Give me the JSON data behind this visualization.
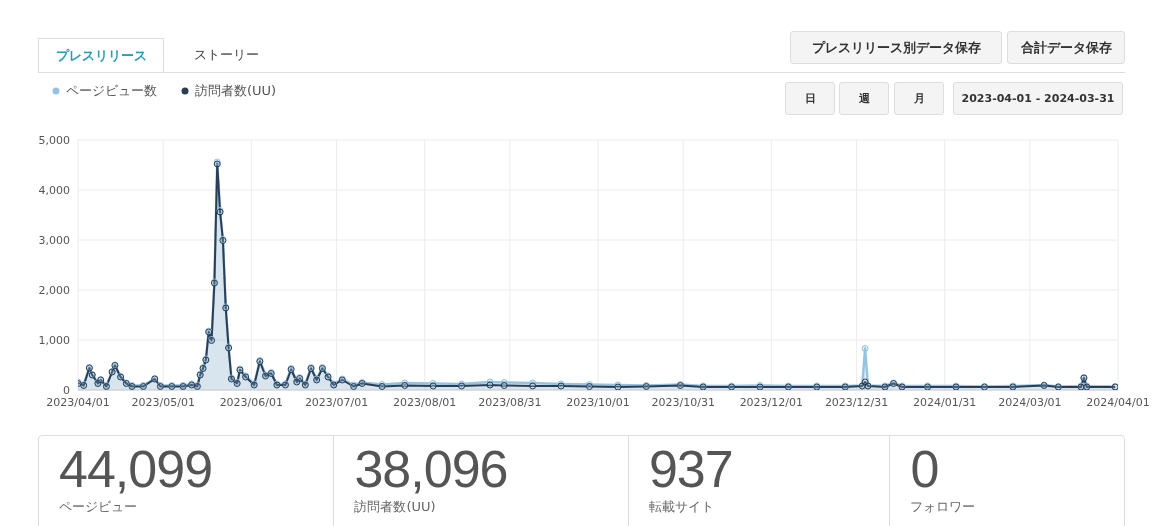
{
  "chart_data": [
    {
      "type": "line",
      "legend": "top left",
      "grid": true,
      "marker": "circle",
      "annotations": [
        "プレスリリース",
        "ストーリー",
        "プレスリリース別データ保存",
        "合計データ保存",
        "日",
        "週",
        "月",
        "2023-04-01 - 2024-03-31"
      ],
      "x": [
        "2023-04-01",
        "2023-04-03",
        "2023-04-05",
        "2023-04-06",
        "2023-04-08",
        "2023-04-09",
        "2023-04-11",
        "2023-04-13",
        "2023-04-14",
        "2023-04-16",
        "2023-04-18",
        "2023-04-20",
        "2023-04-24",
        "2023-04-28",
        "2023-04-30",
        "2023-05-04",
        "2023-05-08",
        "2023-05-11",
        "2023-05-13",
        "2023-05-14",
        "2023-05-15",
        "2023-05-16",
        "2023-05-17",
        "2023-05-18",
        "2023-05-19",
        "2023-05-20",
        "2023-05-21",
        "2023-05-22",
        "2023-05-23",
        "2023-05-24",
        "2023-05-25",
        "2023-05-27",
        "2023-05-28",
        "2023-05-30",
        "2023-06-02",
        "2023-06-04",
        "2023-06-06",
        "2023-06-08",
        "2023-06-10",
        "2023-06-13",
        "2023-06-15",
        "2023-06-17",
        "2023-06-18",
        "2023-06-20",
        "2023-06-22",
        "2023-06-24",
        "2023-06-26",
        "2023-06-28",
        "2023-06-30",
        "2023-07-03",
        "2023-07-07",
        "2023-07-10",
        "2023-07-17",
        "2023-07-25",
        "2023-08-04",
        "2023-08-14",
        "2023-08-24",
        "2023-08-29",
        "2023-09-08",
        "2023-09-18",
        "2023-09-28",
        "2023-10-08",
        "2023-10-18",
        "2023-10-30",
        "2023-11-07",
        "2023-11-17",
        "2023-11-27",
        "2023-12-07",
        "2023-12-17",
        "2023-12-27",
        "2024-01-02",
        "2024-01-03",
        "2024-01-04",
        "2024-01-10",
        "2024-01-13",
        "2024-01-16",
        "2024-01-25",
        "2024-02-04",
        "2024-02-14",
        "2024-02-24",
        "2024-03-06",
        "2024-03-11",
        "2024-03-19",
        "2024-03-20",
        "2024-03-21",
        "2024-03-31"
      ],
      "series": [
        {
          "name": "ページビュー数",
          "type": "area",
          "color": "#94c4e2",
          "values": [
            160,
            110,
            450,
            310,
            150,
            210,
            90,
            370,
            500,
            270,
            140,
            90,
            90,
            230,
            90,
            90,
            90,
            120,
            90,
            320,
            450,
            620,
            1180,
            1010,
            2160,
            4560,
            3590,
            3010,
            1660,
            860,
            240,
            150,
            420,
            280,
            120,
            590,
            300,
            350,
            120,
            120,
            430,
            180,
            250,
            120,
            450,
            220,
            450,
            280,
            120,
            220,
            100,
            150,
            110,
            140,
            130,
            120,
            160,
            150,
            140,
            120,
            110,
            100,
            90,
            110,
            80,
            80,
            90,
            80,
            80,
            80,
            90,
            830,
            90,
            80,
            140,
            80,
            80,
            80,
            70,
            80,
            100,
            70,
            80,
            250,
            80,
            70
          ]
        },
        {
          "name": "訪問者数(UU)",
          "type": "area",
          "color": "#2c3e56",
          "values": [
            130,
            90,
            440,
            300,
            130,
            200,
            70,
            360,
            490,
            260,
            130,
            70,
            70,
            220,
            70,
            70,
            70,
            100,
            70,
            300,
            430,
            600,
            1160,
            990,
            2140,
            4520,
            3560,
            2990,
            1640,
            840,
            220,
            130,
            400,
            260,
            100,
            570,
            280,
            330,
            100,
            100,
            410,
            160,
            230,
            100,
            430,
            200,
            430,
            260,
            100,
            200,
            70,
            130,
            70,
            90,
            80,
            80,
            100,
            90,
            80,
            80,
            70,
            60,
            70,
            90,
            60,
            60,
            60,
            60,
            60,
            60,
            80,
            160,
            80,
            60,
            130,
            60,
            60,
            60,
            60,
            60,
            90,
            60,
            60,
            240,
            60,
            60
          ]
        }
      ],
      "xlim": [
        "2023-04-01",
        "2024-04-01"
      ],
      "xticks": [
        {
          "value": "2023-04-01",
          "label": "2023/04/01"
        },
        {
          "value": "2023-05-01",
          "label": "2023/05/01"
        },
        {
          "value": "2023-06-01",
          "label": "2023/06/01"
        },
        {
          "value": "2023-07-01",
          "label": "2023/07/01"
        },
        {
          "value": "2023-08-01",
          "label": "2023/08/01"
        },
        {
          "value": "2023-08-31",
          "label": "2023/08/31"
        },
        {
          "value": "2023-10-01",
          "label": "2023/10/01"
        },
        {
          "value": "2023-10-31",
          "label": "2023/10/31"
        },
        {
          "value": "2023-12-01",
          "label": "2023/12/01"
        },
        {
          "value": "2023-12-31",
          "label": "2023/12/31"
        },
        {
          "value": "2024-01-31",
          "label": "2024/01/31"
        },
        {
          "value": "2024-03-01",
          "label": "2024/03/01"
        },
        {
          "value": "2024-04-01",
          "label": "2024/04/01"
        }
      ],
      "ylim": [
        0,
        5000
      ],
      "yticks": [
        0,
        {
          "value": 1000,
          "label": "1,000"
        },
        {
          "value": 2000,
          "label": "2,000"
        },
        {
          "value": 3000,
          "label": "3,000"
        },
        {
          "value": 4000,
          "label": "4,000"
        },
        {
          "value": 5000,
          "label": "5,000"
        }
      ]
    },
    {
      "type": "other",
      "annotations": [
        "44,099",
        "ページビュー",
        "38,096",
        "訪問者数(UU)",
        "937",
        "転載サイト",
        "0",
        "フォロワー"
      ]
    }
  ]
}
